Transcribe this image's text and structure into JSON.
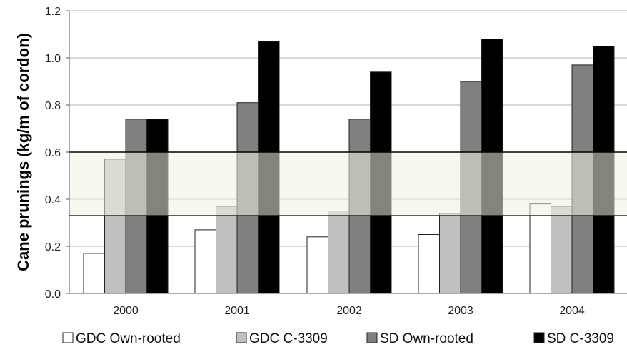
{
  "chart_data": {
    "type": "bar",
    "title": "",
    "xlabel": "",
    "ylabel": "Cane prunings (kg/m of cordon)",
    "categories": [
      "2000",
      "2001",
      "2002",
      "2003",
      "2004"
    ],
    "y_ticks": [
      "0.0",
      "0.2",
      "0.4",
      "0.6",
      "0.8",
      "1.0",
      "1.2"
    ],
    "ylim": [
      0,
      1.2
    ],
    "grid": true,
    "legend_position": "bottom",
    "series": [
      {
        "name": "GDC Own-rooted",
        "color": "#ffffff",
        "values": [
          0.17,
          0.27,
          0.24,
          0.25,
          0.38
        ]
      },
      {
        "name": "GDC C-3309",
        "color": "#c0c0c0",
        "values": [
          0.57,
          0.37,
          0.35,
          0.34,
          0.37
        ]
      },
      {
        "name": "SD Own-rooted",
        "color": "#808080",
        "values": [
          0.74,
          0.81,
          0.74,
          0.9,
          0.97
        ]
      },
      {
        "name": "SD C-3309",
        "color": "#000000",
        "values": [
          0.74,
          1.07,
          0.94,
          1.08,
          1.05
        ]
      }
    ],
    "target_band": {
      "range": [
        0.33,
        0.6
      ],
      "color": "#eef3e2"
    }
  }
}
